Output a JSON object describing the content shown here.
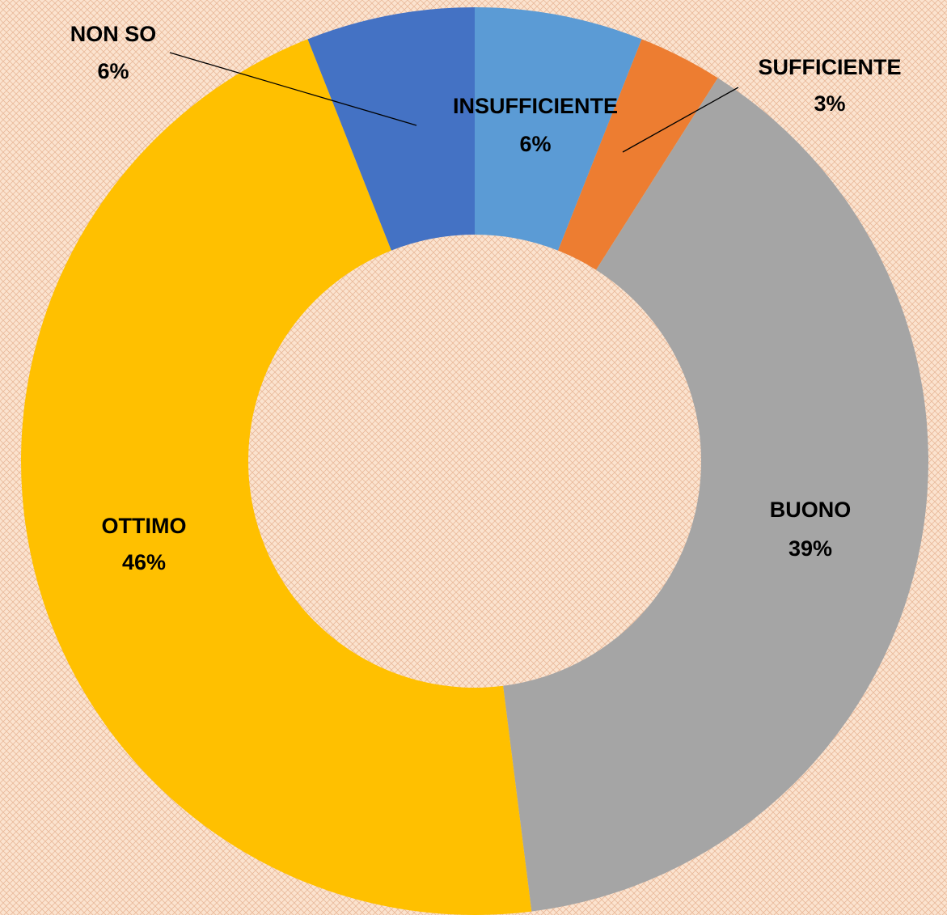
{
  "chart_data": {
    "type": "donut",
    "categories": [
      "INSUFFICIENTE",
      "SUFFICIENTE",
      "BUONO",
      "OTTIMO",
      "NON SO"
    ],
    "values": [
      6,
      3,
      39,
      46,
      6
    ],
    "value_labels": [
      "6%",
      "3%",
      "39%",
      "46%",
      "6%"
    ],
    "colors": [
      "#5b9bd5",
      "#ed7d31",
      "#a5a5a5",
      "#ffc000",
      "#4472c4"
    ]
  }
}
